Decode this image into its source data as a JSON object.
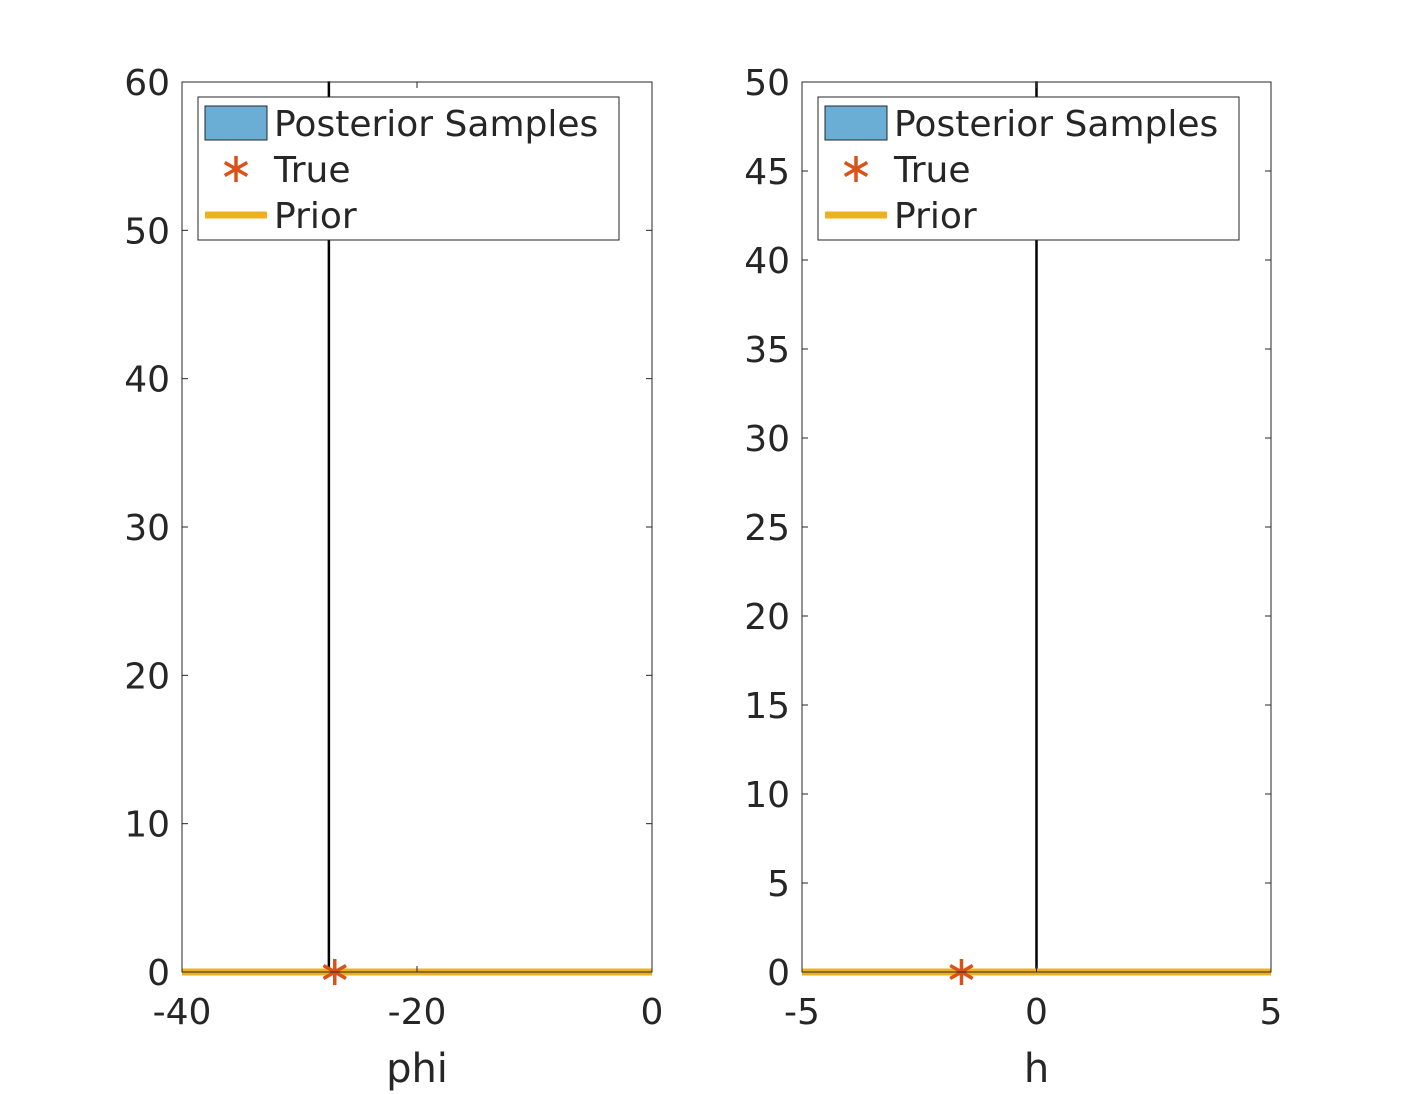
{
  "chart_data": [
    {
      "type": "bar",
      "xlabel": "phi",
      "ylabel": "",
      "xlim": [
        -40,
        0
      ],
      "ylim": [
        0,
        60
      ],
      "xticks": [
        -40,
        -20,
        0
      ],
      "yticks": [
        0,
        10,
        20,
        30,
        40,
        50,
        60
      ],
      "xtick_labels": [
        "-40",
        "-20",
        "0"
      ],
      "ytick_labels": [
        "0",
        "10",
        "20",
        "30",
        "40",
        "50",
        "60"
      ],
      "grid": false,
      "legend_position": "top",
      "legend": [
        "Posterior Samples",
        "True",
        "Prior"
      ],
      "series": [
        {
          "name": "Posterior Samples",
          "kind": "histogram",
          "bar_x": -27.5,
          "bar_height": 60
        },
        {
          "name": "True",
          "kind": "marker",
          "x": -27,
          "y": 0
        },
        {
          "name": "Prior",
          "kind": "line",
          "x": [
            -40,
            0
          ],
          "y": [
            0,
            0
          ]
        }
      ],
      "colors": {
        "posterior": "#6aaed6",
        "true": "#d95319",
        "prior": "#edb120"
      }
    },
    {
      "type": "bar",
      "xlabel": "h",
      "ylabel": "",
      "xlim": [
        -5,
        5
      ],
      "ylim": [
        0,
        50
      ],
      "xticks": [
        -5,
        0,
        5
      ],
      "yticks": [
        0,
        5,
        10,
        15,
        20,
        25,
        30,
        35,
        40,
        45,
        50
      ],
      "xtick_labels": [
        "-5",
        "0",
        "5"
      ],
      "ytick_labels": [
        "0",
        "5",
        "10",
        "15",
        "20",
        "25",
        "30",
        "35",
        "40",
        "45",
        "50"
      ],
      "grid": false,
      "legend_position": "top",
      "legend": [
        "Posterior Samples",
        "True",
        "Prior"
      ],
      "series": [
        {
          "name": "Posterior Samples",
          "kind": "histogram",
          "bar_x": 0,
          "bar_height": 50
        },
        {
          "name": "True",
          "kind": "marker",
          "x": -1.6,
          "y": 0
        },
        {
          "name": "Prior",
          "kind": "line",
          "x": [
            -5,
            5
          ],
          "y": [
            0,
            0
          ]
        }
      ],
      "colors": {
        "posterior": "#6aaed6",
        "true": "#d95319",
        "prior": "#edb120"
      }
    }
  ]
}
